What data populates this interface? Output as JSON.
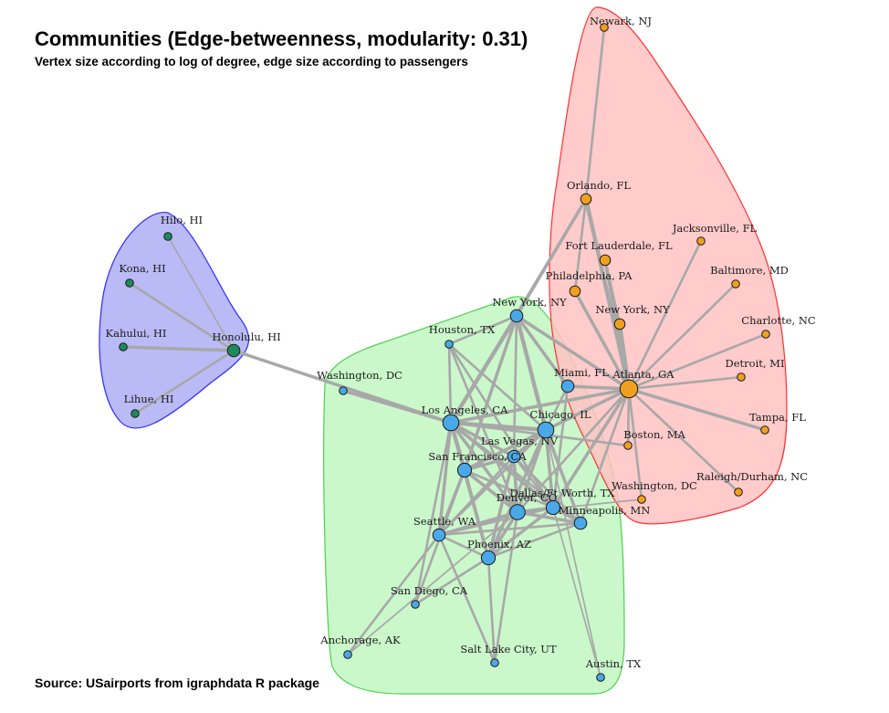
{
  "title": "Communities (Edge-betweenness, modularity: 0.31)",
  "subtitle": "Vertex size according to log of degree, edge size according to passengers",
  "source": "Source: USairports from igraphdata R package",
  "colors": {
    "hawaii_fill": "#b3b3f5",
    "hawaii_stroke": "#2c2cff",
    "hawaii_node": "#1e8a5a",
    "west_fill": "#c4f7c4",
    "west_stroke": "#4fd04f",
    "west_node": "#4aa8e8",
    "east_fill": "#ffc2c2",
    "east_stroke": "#ff3030",
    "east_node": "#f0a020",
    "edge": "#a8a8a8"
  },
  "nodes": [
    {
      "id": "hilo",
      "label": "Hilo, HI",
      "community": "hawaii",
      "deg": 1
    },
    {
      "id": "kona",
      "label": "Kona, HI",
      "community": "hawaii",
      "deg": 1
    },
    {
      "id": "kahului",
      "label": "Kahului, HI",
      "community": "hawaii",
      "deg": 1
    },
    {
      "id": "lihue",
      "label": "Lihue, HI",
      "community": "hawaii",
      "deg": 1
    },
    {
      "id": "honolulu",
      "label": "Honolulu, HI",
      "community": "hawaii",
      "deg": 3
    },
    {
      "id": "washington_dc_w",
      "label": "Washington, DC",
      "community": "west",
      "deg": 1
    },
    {
      "id": "houston",
      "label": "Houston, TX",
      "community": "west",
      "deg": 1
    },
    {
      "id": "newyork_w",
      "label": "New York, NY",
      "community": "west",
      "deg": 3
    },
    {
      "id": "losangeles",
      "label": "Los Angeles, CA",
      "community": "west",
      "deg": 6
    },
    {
      "id": "chicago",
      "label": "Chicago, IL",
      "community": "west",
      "deg": 6
    },
    {
      "id": "lasvegas",
      "label": "Las Vegas, NV",
      "community": "west",
      "deg": 3
    },
    {
      "id": "miami",
      "label": "Miami, FL",
      "community": "west",
      "deg": 3
    },
    {
      "id": "sanfrancisco",
      "label": "San Francisco, CA",
      "community": "west",
      "deg": 4
    },
    {
      "id": "denver",
      "label": "Denver, CO",
      "community": "west",
      "deg": 5
    },
    {
      "id": "dallas",
      "label": "Dallas/Ft Worth, TX",
      "community": "west",
      "deg": 4
    },
    {
      "id": "minneapolis",
      "label": "Minneapolis, MN",
      "community": "west",
      "deg": 3
    },
    {
      "id": "seattle",
      "label": "Seattle, WA",
      "community": "west",
      "deg": 3
    },
    {
      "id": "phoenix",
      "label": "Phoenix, AZ",
      "community": "west",
      "deg": 4
    },
    {
      "id": "sandiego",
      "label": "San Diego, CA",
      "community": "west",
      "deg": 1
    },
    {
      "id": "anchorage",
      "label": "Anchorage, AK",
      "community": "west",
      "deg": 1
    },
    {
      "id": "saltlake",
      "label": "Salt Lake City, UT",
      "community": "west",
      "deg": 1
    },
    {
      "id": "austin",
      "label": "Austin, TX",
      "community": "west",
      "deg": 1
    },
    {
      "id": "newark",
      "label": "Newark, NJ",
      "community": "east",
      "deg": 1
    },
    {
      "id": "orlando",
      "label": "Orlando, FL",
      "community": "east",
      "deg": 2
    },
    {
      "id": "jacksonville",
      "label": "Jacksonville, FL",
      "community": "east",
      "deg": 1
    },
    {
      "id": "ftlauderdale",
      "label": "Fort Lauderdale, FL",
      "community": "east",
      "deg": 2
    },
    {
      "id": "baltimore",
      "label": "Baltimore, MD",
      "community": "east",
      "deg": 1
    },
    {
      "id": "philadelphia",
      "label": "Philadelphia, PA",
      "community": "east",
      "deg": 2
    },
    {
      "id": "newyork_e",
      "label": "New York, NY",
      "community": "east",
      "deg": 2
    },
    {
      "id": "charlotte",
      "label": "Charlotte, NC",
      "community": "east",
      "deg": 1
    },
    {
      "id": "detroit",
      "label": "Detroit, MI",
      "community": "east",
      "deg": 1
    },
    {
      "id": "atlanta",
      "label": "Atlanta, GA",
      "community": "east",
      "deg": 8
    },
    {
      "id": "tampa",
      "label": "Tampa, FL",
      "community": "east",
      "deg": 1
    },
    {
      "id": "boston",
      "label": "Boston, MA",
      "community": "east",
      "deg": 1
    },
    {
      "id": "washington_dc_e",
      "label": "Washington, DC",
      "community": "east",
      "deg": 1
    },
    {
      "id": "raleigh",
      "label": "Raleigh/Durham, NC",
      "community": "east",
      "deg": 1
    }
  ],
  "edges": [
    {
      "from": "honolulu",
      "to": "hilo",
      "w": 1
    },
    {
      "from": "honolulu",
      "to": "kona",
      "w": 2
    },
    {
      "from": "honolulu",
      "to": "kahului",
      "w": 3
    },
    {
      "from": "honolulu",
      "to": "lihue",
      "w": 2
    },
    {
      "from": "honolulu",
      "to": "losangeles",
      "w": 3
    },
    {
      "from": "losangeles",
      "to": "washington_dc_w",
      "w": 3
    },
    {
      "from": "losangeles",
      "to": "newyork_w",
      "w": 4
    },
    {
      "from": "losangeles",
      "to": "chicago",
      "w": 4
    },
    {
      "from": "losangeles",
      "to": "lasvegas",
      "w": 3
    },
    {
      "from": "losangeles",
      "to": "sanfrancisco",
      "w": 4
    },
    {
      "from": "losangeles",
      "to": "denver",
      "w": 3
    },
    {
      "from": "losangeles",
      "to": "dallas",
      "w": 3
    },
    {
      "from": "losangeles",
      "to": "seattle",
      "w": 3
    },
    {
      "from": "losangeles",
      "to": "phoenix",
      "w": 3
    },
    {
      "from": "losangeles",
      "to": "houston",
      "w": 2
    },
    {
      "from": "losangeles",
      "to": "minneapolis",
      "w": 2
    },
    {
      "from": "losangeles",
      "to": "atlanta",
      "w": 3
    },
    {
      "from": "losangeles",
      "to": "orlando",
      "w": 2
    },
    {
      "from": "losangeles",
      "to": "boston",
      "w": 2
    },
    {
      "from": "losangeles",
      "to": "sandiego",
      "w": 2
    },
    {
      "from": "chicago",
      "to": "newyork_w",
      "w": 4
    },
    {
      "from": "chicago",
      "to": "lasvegas",
      "w": 3
    },
    {
      "from": "chicago",
      "to": "denver",
      "w": 3
    },
    {
      "from": "chicago",
      "to": "dallas",
      "w": 3
    },
    {
      "from": "chicago",
      "to": "minneapolis",
      "w": 3
    },
    {
      "from": "chicago",
      "to": "phoenix",
      "w": 3
    },
    {
      "from": "chicago",
      "to": "sanfrancisco",
      "w": 3
    },
    {
      "from": "chicago",
      "to": "atlanta",
      "w": 3
    },
    {
      "from": "chicago",
      "to": "miami",
      "w": 2
    },
    {
      "from": "chicago",
      "to": "houston",
      "w": 2
    },
    {
      "from": "chicago",
      "to": "seattle",
      "w": 2
    },
    {
      "from": "chicago",
      "to": "austin",
      "w": 1
    },
    {
      "from": "newyork_w",
      "to": "miami",
      "w": 3
    },
    {
      "from": "newyork_w",
      "to": "sanfrancisco",
      "w": 3
    },
    {
      "from": "newyork_w",
      "to": "orlando",
      "w": 3
    },
    {
      "from": "newyork_w",
      "to": "houston",
      "w": 2
    },
    {
      "from": "newyork_w",
      "to": "lasvegas",
      "w": 2
    },
    {
      "from": "sanfrancisco",
      "to": "lasvegas",
      "w": 3
    },
    {
      "from": "sanfrancisco",
      "to": "seattle",
      "w": 3
    },
    {
      "from": "sanfrancisco",
      "to": "denver",
      "w": 3
    },
    {
      "from": "sanfrancisco",
      "to": "phoenix",
      "w": 3
    },
    {
      "from": "sanfrancisco",
      "to": "dallas",
      "w": 2
    },
    {
      "from": "sanfrancisco",
      "to": "sandiego",
      "w": 2
    },
    {
      "from": "lasvegas",
      "to": "denver",
      "w": 3
    },
    {
      "from": "lasvegas",
      "to": "phoenix",
      "w": 3
    },
    {
      "from": "lasvegas",
      "to": "seattle",
      "w": 2
    },
    {
      "from": "lasvegas",
      "to": "dallas",
      "w": 2
    },
    {
      "from": "lasvegas",
      "to": "minneapolis",
      "w": 2
    },
    {
      "from": "denver",
      "to": "dallas",
      "w": 3
    },
    {
      "from": "denver",
      "to": "phoenix",
      "w": 3
    },
    {
      "from": "denver",
      "to": "seattle",
      "w": 3
    },
    {
      "from": "denver",
      "to": "minneapolis",
      "w": 3
    },
    {
      "from": "denver",
      "to": "saltlake",
      "w": 2
    },
    {
      "from": "denver",
      "to": "houston",
      "w": 2
    },
    {
      "from": "denver",
      "to": "atlanta",
      "w": 2
    },
    {
      "from": "denver",
      "to": "anchorage",
      "w": 1
    },
    {
      "from": "dallas",
      "to": "phoenix",
      "w": 3
    },
    {
      "from": "dallas",
      "to": "atlanta",
      "w": 3
    },
    {
      "from": "dallas",
      "to": "houston",
      "w": 2
    },
    {
      "from": "dallas",
      "to": "miami",
      "w": 2
    },
    {
      "from": "dallas",
      "to": "minneapolis",
      "w": 2
    },
    {
      "from": "dallas",
      "to": "seattle",
      "w": 2
    },
    {
      "from": "dallas",
      "to": "austin",
      "w": 1
    },
    {
      "from": "phoenix",
      "to": "seattle",
      "w": 2
    },
    {
      "from": "phoenix",
      "to": "sandiego",
      "w": 2
    },
    {
      "from": "phoenix",
      "to": "saltlake",
      "w": 2
    },
    {
      "from": "phoenix",
      "to": "minneapolis",
      "w": 2
    },
    {
      "from": "seattle",
      "to": "anchorage",
      "w": 2
    },
    {
      "from": "seattle",
      "to": "saltlake",
      "w": 2
    },
    {
      "from": "seattle",
      "to": "minneapolis",
      "w": 2
    },
    {
      "from": "minneapolis",
      "to": "atlanta",
      "w": 2
    },
    {
      "from": "miami",
      "to": "atlanta",
      "w": 3
    },
    {
      "from": "atlanta",
      "to": "orlando",
      "w": 4
    },
    {
      "from": "atlanta",
      "to": "ftlauderdale",
      "w": 3
    },
    {
      "from": "atlanta",
      "to": "philadelphia",
      "w": 3
    },
    {
      "from": "atlanta",
      "to": "newyork_e",
      "w": 4
    },
    {
      "from": "atlanta",
      "to": "jacksonville",
      "w": 2
    },
    {
      "from": "atlanta",
      "to": "baltimore",
      "w": 2
    },
    {
      "from": "atlanta",
      "to": "charlotte",
      "w": 2
    },
    {
      "from": "atlanta",
      "to": "detroit",
      "w": 2
    },
    {
      "from": "atlanta",
      "to": "tampa",
      "w": 3
    },
    {
      "from": "atlanta",
      "to": "boston",
      "w": 2
    },
    {
      "from": "atlanta",
      "to": "washington_dc_e",
      "w": 2
    },
    {
      "from": "atlanta",
      "to": "raleigh",
      "w": 2
    },
    {
      "from": "atlanta",
      "to": "newyork_w",
      "w": 3
    },
    {
      "from": "newark",
      "to": "orlando",
      "w": 2
    },
    {
      "from": "orlando",
      "to": "philadelphia",
      "w": 2
    },
    {
      "from": "ftlauderdale",
      "to": "newyork_e",
      "w": 2
    },
    {
      "from": "washington_dc_e",
      "to": "denver",
      "w": 1
    }
  ]
}
